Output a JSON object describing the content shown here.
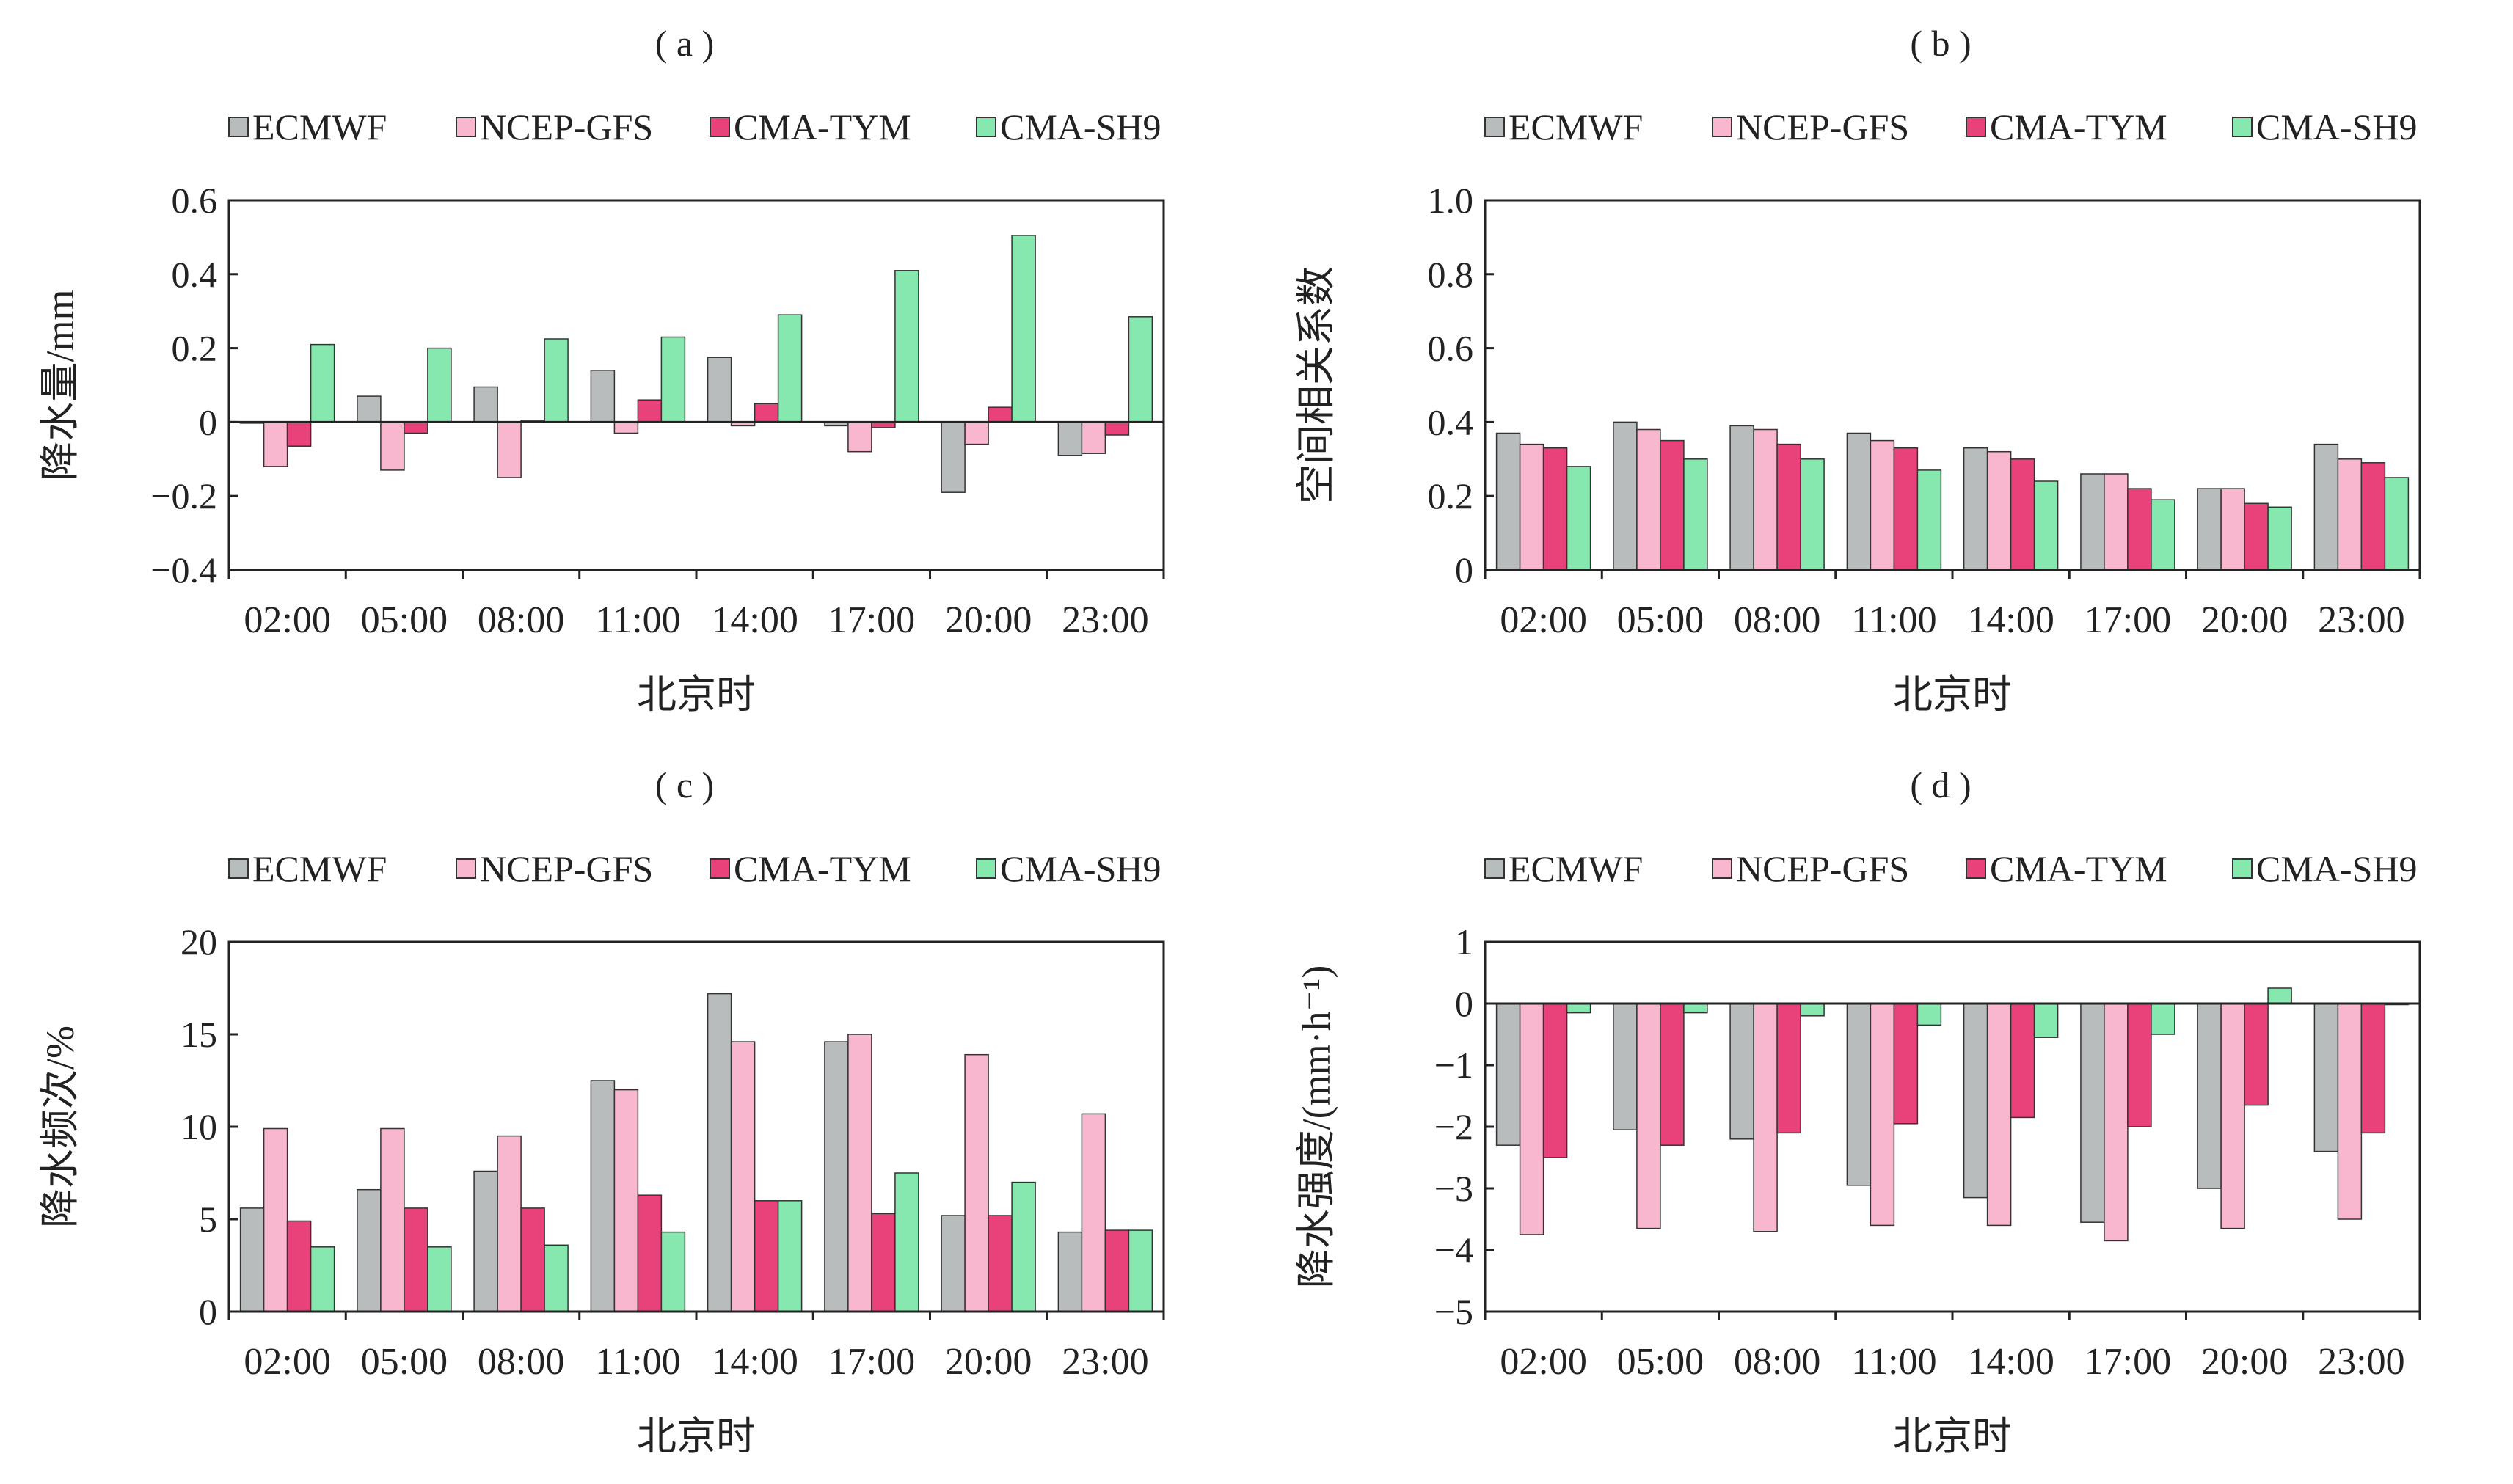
{
  "colors": {
    "ECMWF": "#b8bcbd",
    "NCEP-GFS": "#f9b7cf",
    "CMA-TYM": "#e9427a",
    "CMA-SH9": "#86e8ae",
    "axis": "#222222",
    "bar_stroke": "#333333"
  },
  "chart_data": [
    {
      "type": "bar",
      "panel_label": "( a )",
      "categories": [
        "02:00",
        "05:00",
        "08:00",
        "11:00",
        "14:00",
        "17:00",
        "20:00",
        "23:00"
      ],
      "series": [
        {
          "name": "ECMWF",
          "values": [
            0.0,
            0.07,
            0.095,
            0.14,
            0.175,
            -0.01,
            -0.19,
            -0.09
          ]
        },
        {
          "name": "NCEP-GFS",
          "values": [
            -0.12,
            -0.13,
            -0.15,
            -0.03,
            -0.01,
            -0.08,
            -0.06,
            -0.085
          ]
        },
        {
          "name": "CMA-TYM",
          "values": [
            -0.065,
            -0.03,
            0.005,
            0.06,
            0.05,
            -0.015,
            0.04,
            -0.035
          ]
        },
        {
          "name": "CMA-SH9",
          "values": [
            0.21,
            0.2,
            0.225,
            0.23,
            0.29,
            0.41,
            0.505,
            0.285
          ]
        }
      ],
      "ylabel": "降水量/mm",
      "xlabel": "北京时",
      "ylim": [
        -0.4,
        0.6
      ],
      "yticks": [
        0.6,
        0.4,
        0.2,
        0,
        -0.2,
        -0.4
      ],
      "ytick_labels": [
        "0.6",
        "0.4",
        "0.2",
        "0",
        "−0.2",
        "−0.4"
      ],
      "legend": "top",
      "grid": false
    },
    {
      "type": "bar",
      "panel_label": "( b )",
      "categories": [
        "02:00",
        "05:00",
        "08:00",
        "11:00",
        "14:00",
        "17:00",
        "20:00",
        "23:00"
      ],
      "series": [
        {
          "name": "ECMWF",
          "values": [
            0.37,
            0.4,
            0.39,
            0.37,
            0.33,
            0.26,
            0.22,
            0.34
          ]
        },
        {
          "name": "NCEP-GFS",
          "values": [
            0.34,
            0.38,
            0.38,
            0.35,
            0.32,
            0.26,
            0.22,
            0.3
          ]
        },
        {
          "name": "CMA-TYM",
          "values": [
            0.33,
            0.35,
            0.34,
            0.33,
            0.3,
            0.22,
            0.18,
            0.29
          ]
        },
        {
          "name": "CMA-SH9",
          "values": [
            0.28,
            0.3,
            0.3,
            0.27,
            0.24,
            0.19,
            0.17,
            0.25
          ]
        }
      ],
      "ylabel": "空间相关系数",
      "xlabel": "北京时",
      "ylim": [
        0,
        1.0
      ],
      "yticks": [
        1.0,
        0.8,
        0.6,
        0.4,
        0.2,
        0
      ],
      "ytick_labels": [
        "1.0",
        "0.8",
        "0.6",
        "0.4",
        "0.2",
        "0"
      ],
      "legend": "top",
      "grid": false
    },
    {
      "type": "bar",
      "panel_label": "( c )",
      "categories": [
        "02:00",
        "05:00",
        "08:00",
        "11:00",
        "14:00",
        "17:00",
        "20:00",
        "23:00"
      ],
      "series": [
        {
          "name": "ECMWF",
          "values": [
            5.6,
            6.6,
            7.6,
            12.5,
            17.2,
            14.6,
            5.2,
            4.3
          ]
        },
        {
          "name": "NCEP-GFS",
          "values": [
            9.9,
            9.9,
            9.5,
            12.0,
            14.6,
            15.0,
            13.9,
            10.7
          ]
        },
        {
          "name": "CMA-TYM",
          "values": [
            4.9,
            5.6,
            5.6,
            6.3,
            6.0,
            5.3,
            5.2,
            4.4
          ]
        },
        {
          "name": "CMA-SH9",
          "values": [
            3.5,
            3.5,
            3.6,
            4.3,
            6.0,
            7.5,
            7.0,
            4.4
          ]
        }
      ],
      "ylabel": "降水频次/%",
      "xlabel": "北京时",
      "ylim": [
        0,
        20
      ],
      "yticks": [
        20,
        15,
        10,
        5,
        0
      ],
      "ytick_labels": [
        "20",
        "15",
        "10",
        "5",
        "0"
      ],
      "legend": "top",
      "grid": false
    },
    {
      "type": "bar",
      "panel_label": "( d )",
      "categories": [
        "02:00",
        "05:00",
        "08:00",
        "11:00",
        "14:00",
        "17:00",
        "20:00",
        "23:00"
      ],
      "series": [
        {
          "name": "ECMWF",
          "values": [
            -2.3,
            -2.05,
            -2.2,
            -2.95,
            -3.15,
            -3.55,
            -3.0,
            -2.4
          ]
        },
        {
          "name": "NCEP-GFS",
          "values": [
            -3.75,
            -3.65,
            -3.7,
            -3.6,
            -3.6,
            -3.85,
            -3.65,
            -3.5
          ]
        },
        {
          "name": "CMA-TYM",
          "values": [
            -2.5,
            -2.3,
            -2.1,
            -1.95,
            -1.85,
            -2.0,
            -1.65,
            -2.1
          ]
        },
        {
          "name": "CMA-SH9",
          "values": [
            -0.15,
            -0.15,
            -0.2,
            -0.35,
            -0.55,
            -0.5,
            0.25,
            0.0
          ]
        }
      ],
      "ylabel": "降水强度/(mm·h⁻¹)",
      "xlabel": "北京时",
      "ylim": [
        -5,
        1
      ],
      "yticks": [
        1,
        0,
        -1,
        -2,
        -3,
        -4,
        -5
      ],
      "ytick_labels": [
        "1",
        "0",
        "−1",
        "−2",
        "−3",
        "−4",
        "−5"
      ],
      "legend": "top",
      "grid": false
    }
  ]
}
